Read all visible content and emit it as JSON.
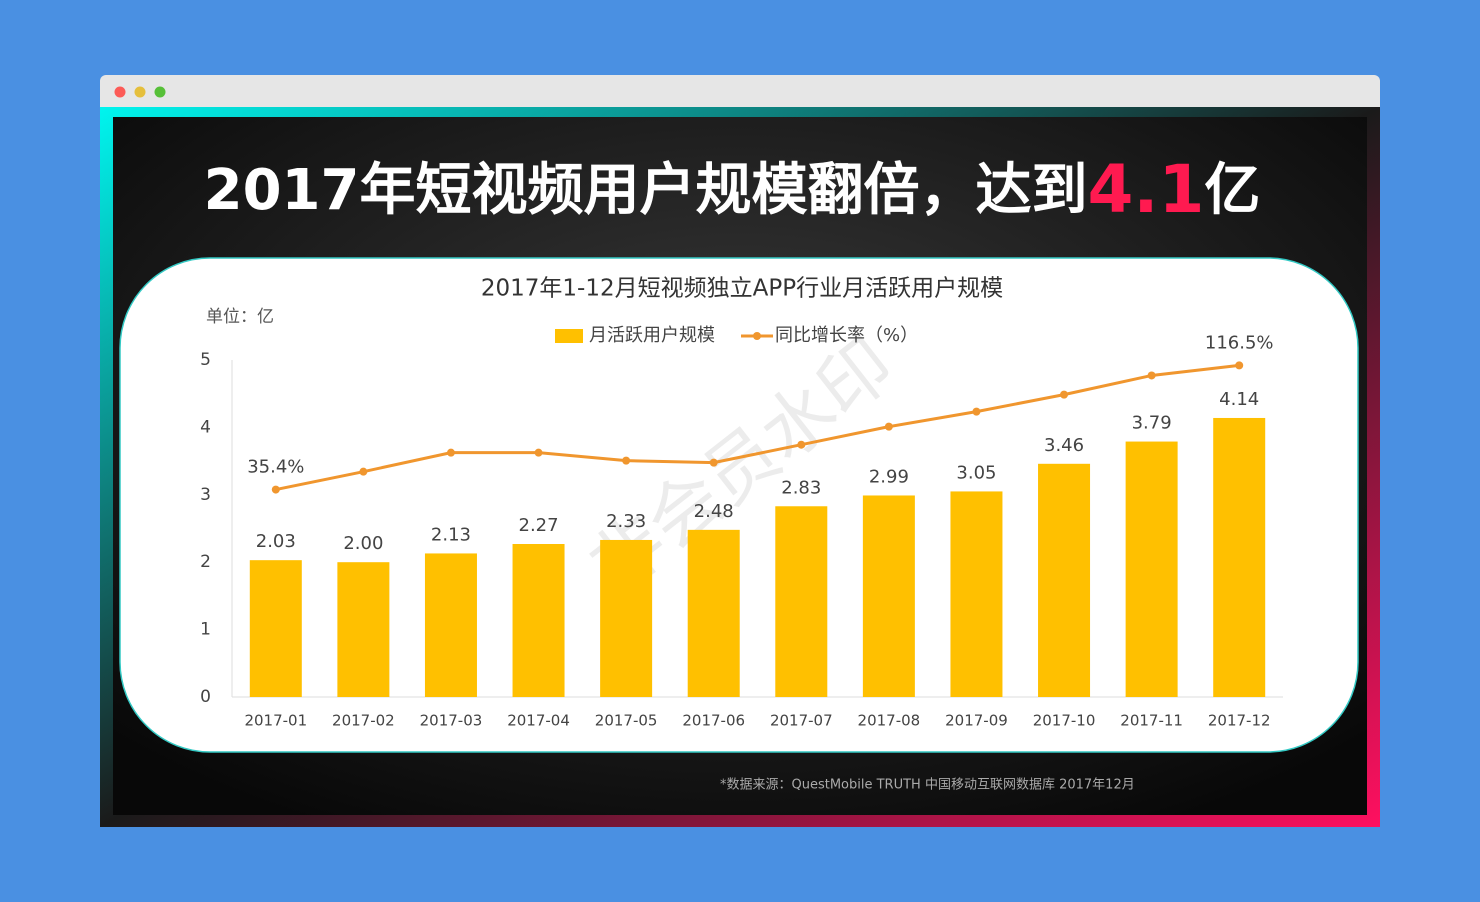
{
  "window": {
    "headline": {
      "prefix": "2017年短视频用户规模翻倍，达到",
      "highlight": "4.1",
      "suffix": "亿"
    },
    "source_note": "*数据来源：QuestMobile TRUTH 中国移动互联网数据库 2017年12月",
    "watermark": "非会员水印"
  },
  "chart_data": {
    "type": "bar",
    "title": "2017年1-12月短视频独立APP行业月活跃用户规模",
    "unit_label": "单位：亿",
    "categories": [
      "2017-01",
      "2017-02",
      "2017-03",
      "2017-04",
      "2017-05",
      "2017-06",
      "2017-07",
      "2017-08",
      "2017-09",
      "2017-10",
      "2017-11",
      "2017-12"
    ],
    "series": [
      {
        "name": "月活跃用户规模",
        "type": "bar",
        "color": "#FFC000",
        "values": [
          2.03,
          2.0,
          2.13,
          2.27,
          2.33,
          2.48,
          2.83,
          2.99,
          3.05,
          3.46,
          3.79,
          4.14
        ],
        "value_labels": [
          "2.03",
          "2.00",
          "2.13",
          "2.27",
          "2.33",
          "2.48",
          "2.83",
          "2.99",
          "3.05",
          "3.46",
          "3.79",
          "4.14"
        ]
      },
      {
        "name": "同比增长率（%）",
        "type": "line",
        "axis": "y2",
        "color": "#F0962E",
        "values": [
          35.4,
          47.1,
          59.5,
          59.5,
          54.3,
          53,
          64.7,
          76.5,
          86.3,
          97.4,
          109.9,
          116.5
        ],
        "value_labels": [
          "35.4%",
          null,
          null,
          null,
          null,
          null,
          null,
          null,
          null,
          null,
          null,
          "116.5%"
        ]
      }
    ],
    "ylim": [
      0,
      5
    ],
    "yticks": [
      0,
      1,
      2,
      3,
      4,
      5
    ],
    "y2lim": [
      -100,
      120
    ],
    "grid": false
  }
}
